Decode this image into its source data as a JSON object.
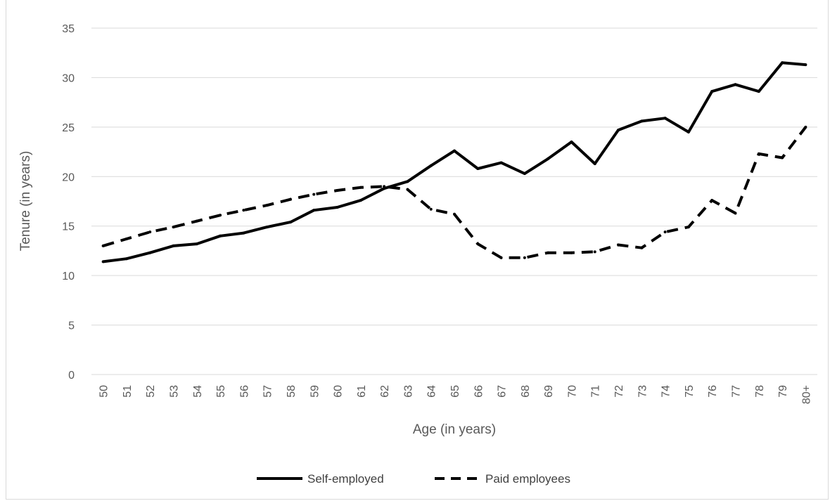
{
  "chart_data": {
    "type": "line",
    "title": "",
    "xlabel": "Age (in years)",
    "ylabel": "Tenure (in years)",
    "ylim": [
      0,
      35
    ],
    "yticks": [
      "0",
      "5",
      "10",
      "15",
      "20",
      "25",
      "30",
      "35"
    ],
    "grid": "horizontal",
    "legend_position": "bottom",
    "categories": [
      "50",
      "51",
      "52",
      "53",
      "54",
      "55",
      "56",
      "57",
      "58",
      "59",
      "60",
      "61",
      "62",
      "63",
      "64",
      "65",
      "66",
      "67",
      "68",
      "69",
      "70",
      "71",
      "72",
      "73",
      "74",
      "75",
      "76",
      "77",
      "78",
      "79",
      "80+"
    ],
    "series": [
      {
        "name": "Self-employed",
        "style": "solid",
        "color": "#000000",
        "values": [
          11.4,
          11.7,
          12.3,
          13.0,
          13.2,
          14.0,
          14.3,
          14.9,
          15.4,
          16.6,
          16.9,
          17.6,
          18.8,
          19.5,
          21.1,
          22.6,
          20.8,
          21.4,
          20.3,
          21.8,
          23.5,
          21.3,
          24.7,
          25.6,
          25.9,
          24.5,
          28.6,
          29.3,
          28.6,
          31.5,
          31.3
        ]
      },
      {
        "name": "Paid employees",
        "style": "dashed",
        "color": "#000000",
        "values": [
          13.0,
          13.7,
          14.4,
          14.9,
          15.5,
          16.1,
          16.6,
          17.1,
          17.7,
          18.2,
          18.6,
          18.9,
          19.0,
          18.7,
          16.7,
          16.2,
          13.2,
          11.8,
          11.8,
          12.3,
          12.3,
          12.4,
          13.1,
          12.8,
          14.4,
          14.9,
          17.6,
          16.3,
          22.3,
          21.9,
          25.0
        ]
      }
    ]
  }
}
